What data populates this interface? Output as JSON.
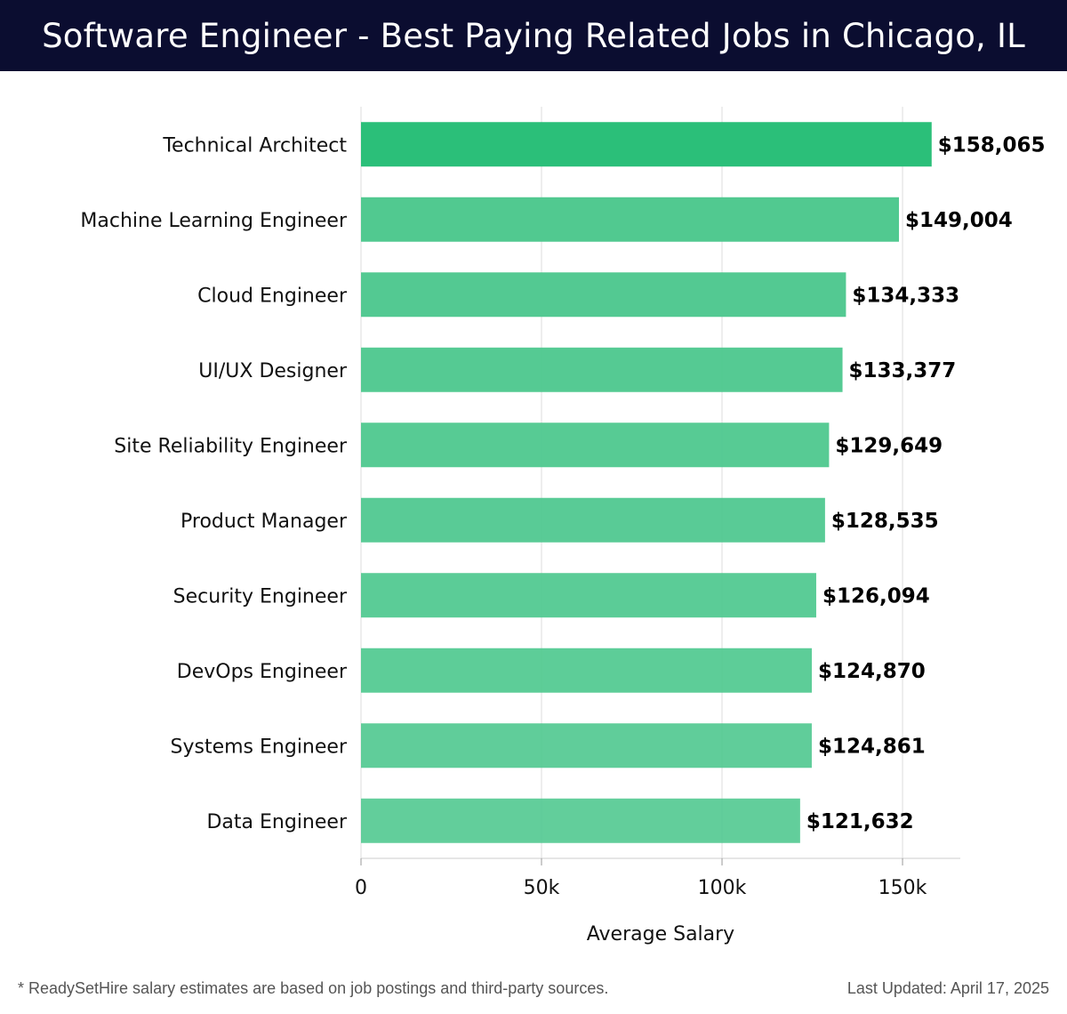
{
  "header": {
    "title": "Software Engineer - Best Paying Related Jobs in Chicago, IL"
  },
  "footer": {
    "note": "* ReadySetHire salary estimates are based on job postings and third-party sources.",
    "updated": "Last Updated: April 17, 2025"
  },
  "colors": {
    "header_bg": "#0b0d30",
    "bar_top": "#2bbf79",
    "bar_other": "#4fc88f",
    "grid": "#dddddd"
  },
  "chart_data": {
    "type": "bar",
    "orientation": "horizontal",
    "categories": [
      "Technical Architect",
      "Machine Learning Engineer",
      "Cloud Engineer",
      "UI/UX Designer",
      "Site Reliability Engineer",
      "Product Manager",
      "Security Engineer",
      "DevOps Engineer",
      "Systems Engineer",
      "Data Engineer"
    ],
    "values": [
      158065,
      149004,
      134333,
      133377,
      129649,
      128535,
      126094,
      124870,
      124861,
      121632
    ],
    "value_labels": [
      "$158,065",
      "$149,004",
      "$134,333",
      "$133,377",
      "$129,649",
      "$128,535",
      "$126,094",
      "$124,870",
      "$124,861",
      "$121,632"
    ],
    "xlabel": "Average Salary",
    "ylabel": "",
    "xlim": [
      0,
      166000
    ],
    "xticks": [
      0,
      50000,
      100000,
      150000
    ],
    "xtick_labels": [
      "0",
      "50k",
      "100k",
      "150k"
    ],
    "grid": true
  }
}
